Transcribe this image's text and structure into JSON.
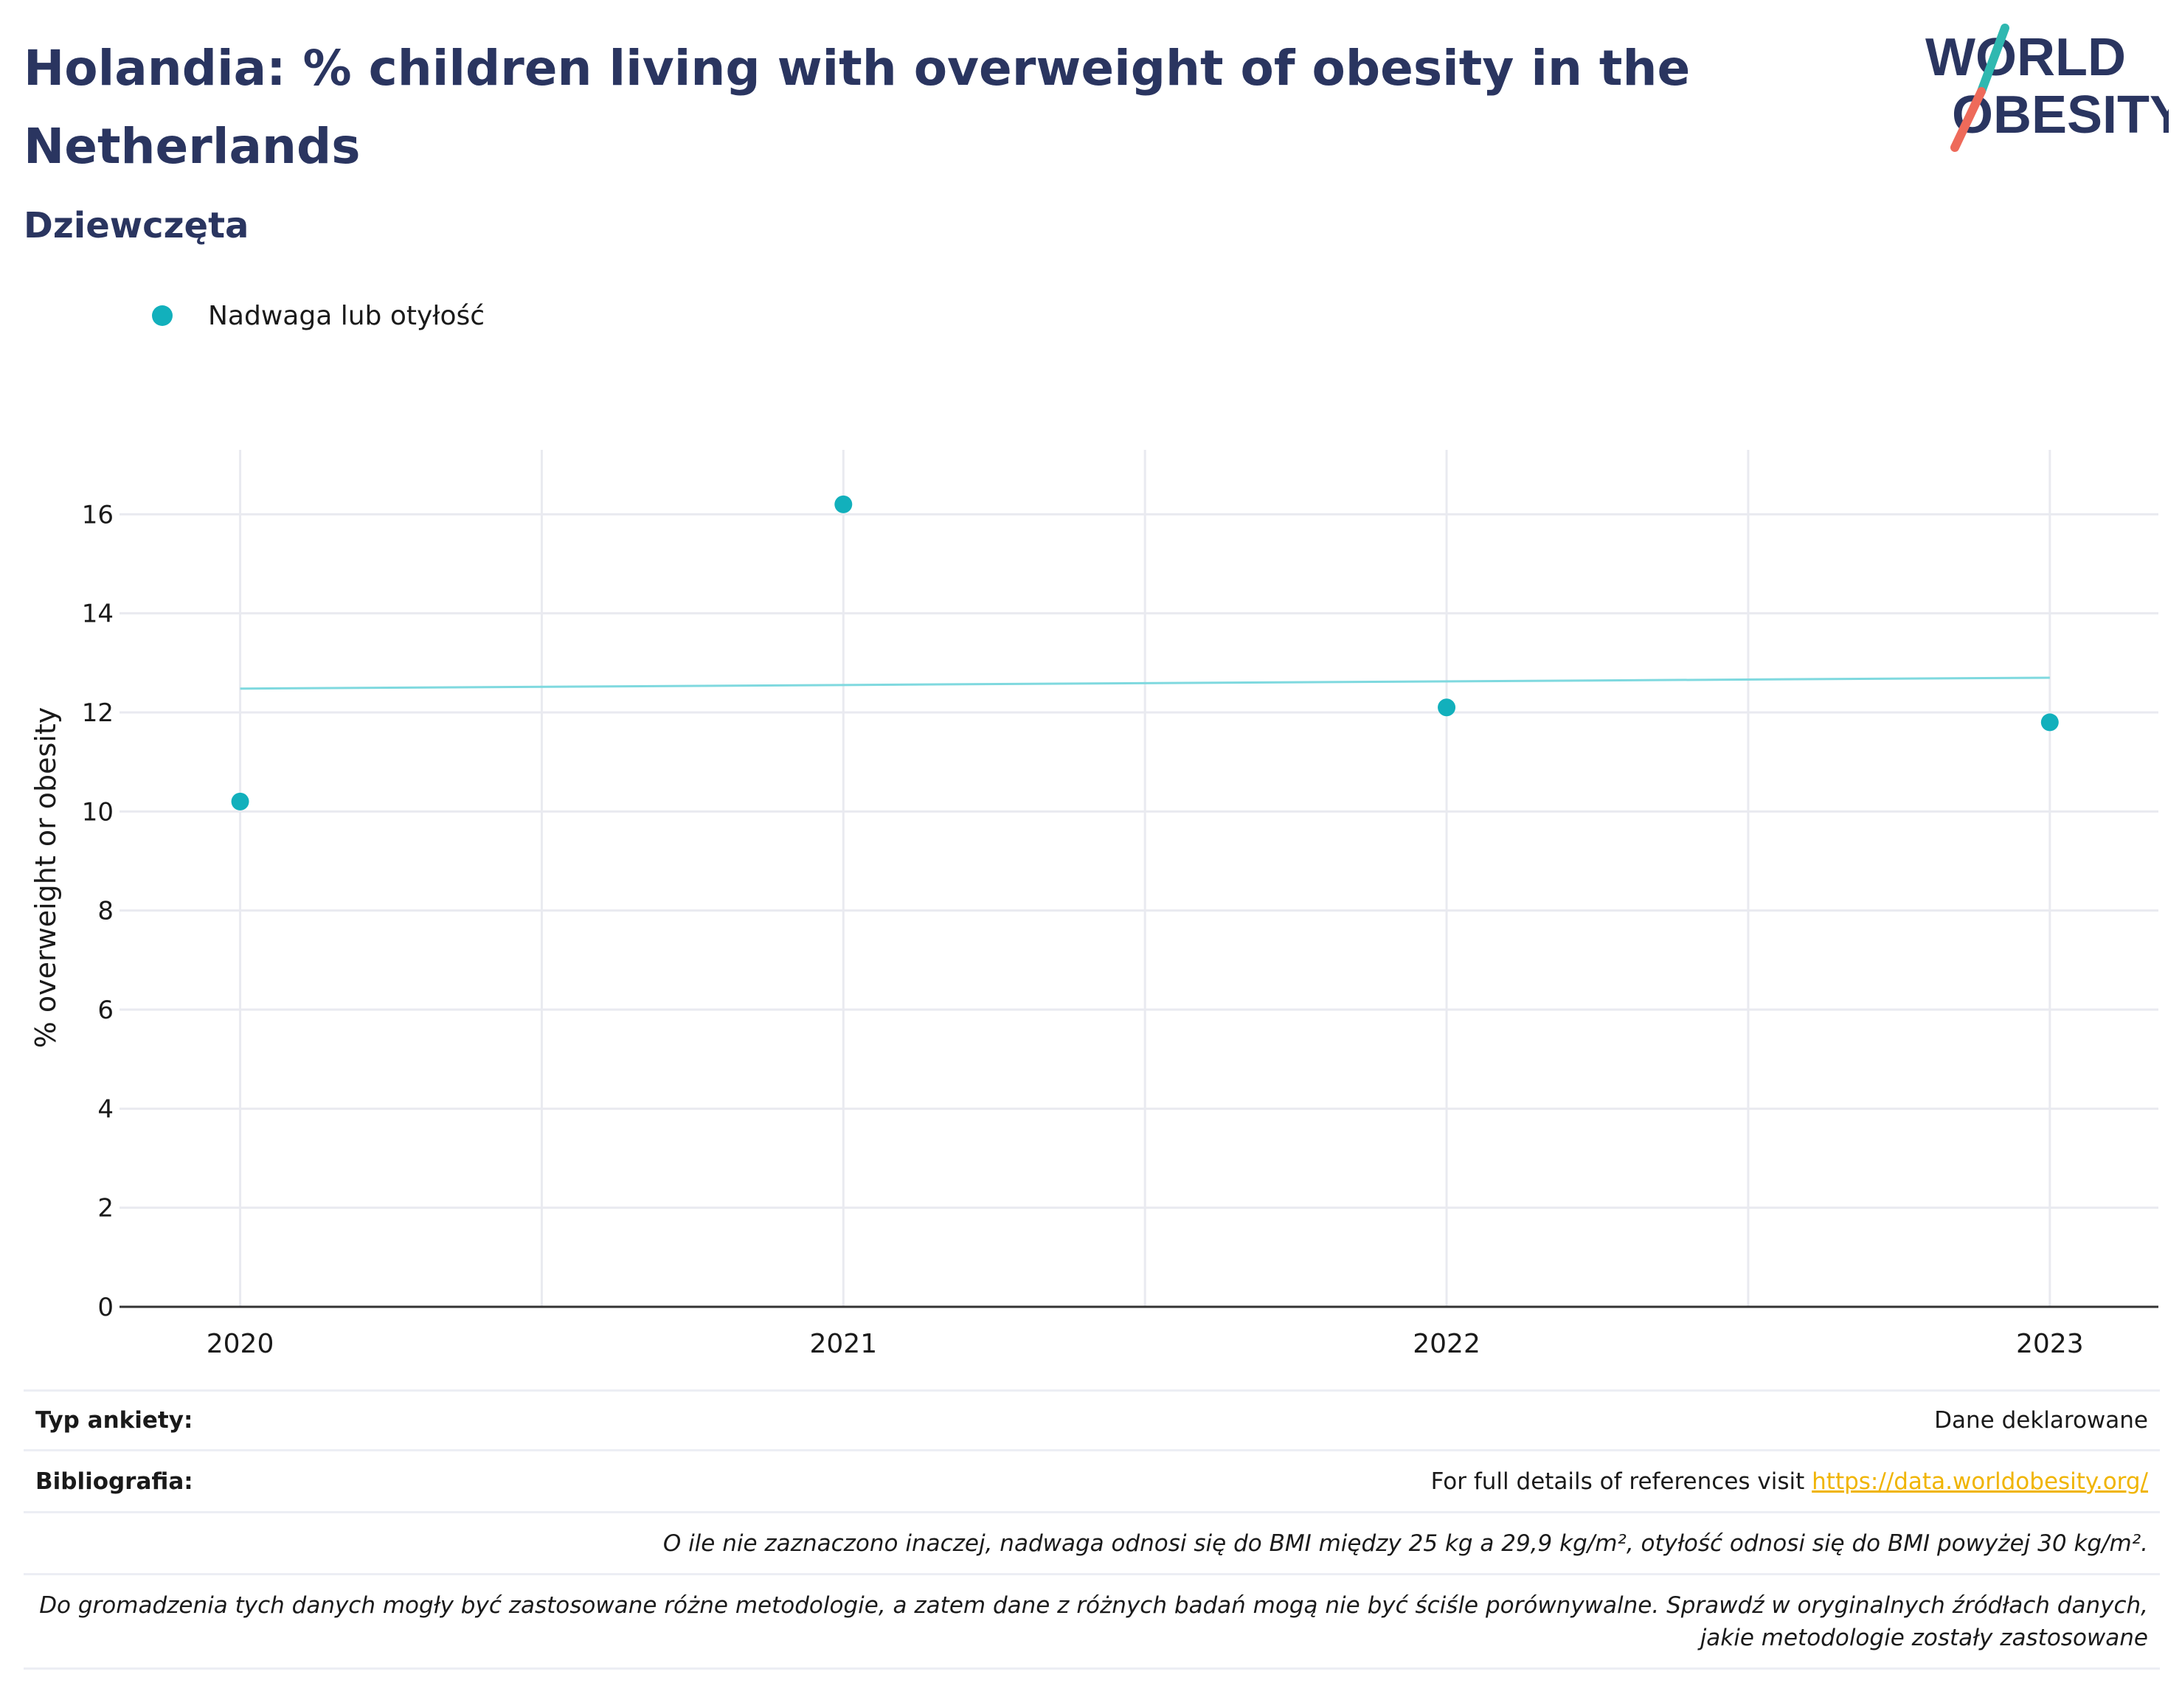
{
  "header": {
    "title": "Holandia: % children living with overweight of obesity in the Netherlands",
    "subtitle": "Dziewczęta"
  },
  "logo": {
    "line1": "WORLD",
    "line2": "OBESITY",
    "accent_teal": "#2fb8b0",
    "accent_coral": "#ee6a5a",
    "text_color": "#2a3560"
  },
  "colors": {
    "series": "#12b0bc",
    "trend": "#7fd9df",
    "grid": "#e9eaf0",
    "axis": "#333333"
  },
  "chart_data": {
    "type": "scatter",
    "xlabel": "",
    "ylabel": "% overweight or obesity",
    "x_ticks": [
      "2020",
      "2021",
      "2022",
      "2023"
    ],
    "y_ticks": [
      0,
      2,
      4,
      6,
      8,
      10,
      12,
      14,
      16
    ],
    "xlim": [
      2019.8,
      2023.18
    ],
    "ylim": [
      0,
      17.3
    ],
    "grid": true,
    "legend_position": "top-left",
    "series": [
      {
        "name": "Nadwaga lub otyłość",
        "x": [
          2020,
          2021,
          2022,
          2023
        ],
        "y": [
          10.2,
          16.2,
          12.1,
          11.8
        ]
      }
    ],
    "trendline": {
      "x": [
        2020,
        2023
      ],
      "y": [
        12.48,
        12.7
      ]
    }
  },
  "footer": {
    "survey_type_label": "Typ ankiety:",
    "survey_type_value": "Dane deklarowane",
    "bibliography_label": "Bibliografia:",
    "bibliography_text": "For full details of references visit ",
    "bibliography_link": "https://data.worldobesity.org/",
    "note1": "O ile nie zaznaczono inaczej, nadwaga odnosi się do BMI między 25 kg a 29,9 kg/m², otyłość odnosi się do BMI powyżej 30 kg/m².",
    "note2": "Do gromadzenia tych danych mogły być zastosowane różne metodologie, a zatem dane z różnych badań mogą nie być ściśle porównywalne. Sprawdź w oryginalnych źródłach danych, jakie metodologie zostały zastosowane"
  }
}
